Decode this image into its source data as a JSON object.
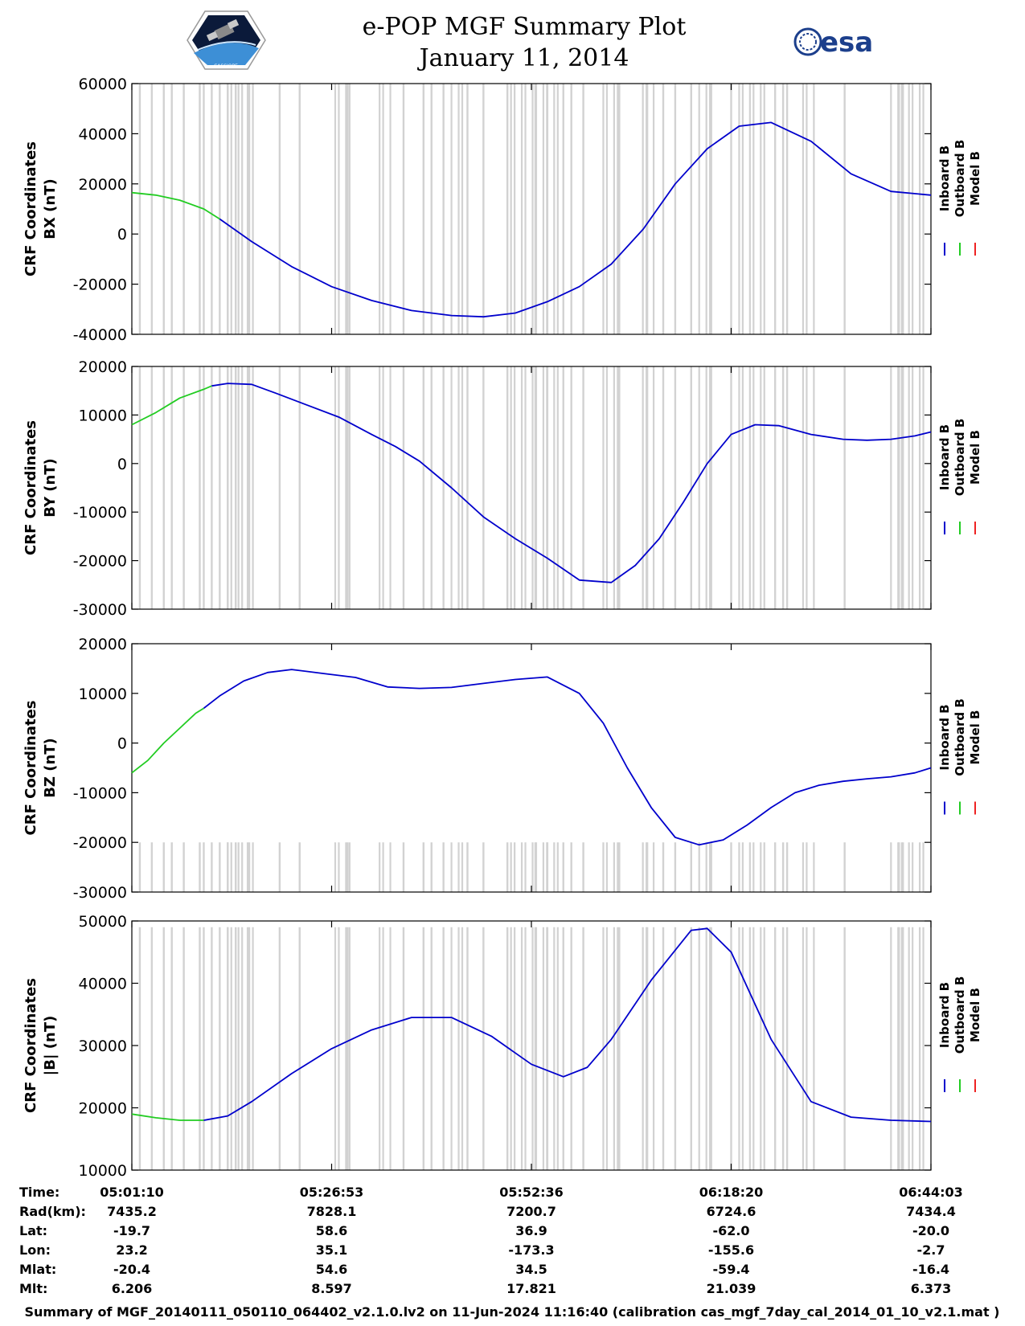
{
  "header": {
    "title": "e-POP MGF Summary Plot",
    "date": "January 11, 2014",
    "logo_left": "cassiope-mission-logo",
    "logo_right": "esa"
  },
  "colors": {
    "inboard": "#0000cc",
    "outboard": "#22cc22",
    "model": "#ee2222",
    "bands": "#d2d2d2",
    "axes": "#000000"
  },
  "legend": [
    "Inboard B",
    "Outboard B",
    "Model B"
  ],
  "chart_data": [
    {
      "type": "line",
      "ylabel_line1": "CRF Coordinates",
      "ylabel_line2": "BX (nT)",
      "ylim": [
        -40000,
        60000
      ],
      "yticks": [
        -40000,
        -20000,
        0,
        20000,
        40000,
        60000
      ],
      "ytick_labels": [
        "-40000",
        "-20000",
        "0",
        "20000",
        "40000",
        "60000"
      ],
      "xlim": [
        0,
        100
      ],
      "band_top": 60000,
      "series": [
        {
          "name": "Outboard B",
          "x": [
            0,
            3,
            6,
            9,
            11
          ],
          "y": [
            16500,
            15500,
            13500,
            10000,
            6000
          ]
        },
        {
          "name": "Inboard B",
          "x": [
            11,
            15,
            20,
            25,
            30,
            35,
            40,
            44,
            48,
            52,
            56,
            60,
            64,
            68,
            72,
            76,
            80,
            85,
            90,
            95,
            100
          ],
          "y": [
            6000,
            -3000,
            -13000,
            -21000,
            -26500,
            -30500,
            -32500,
            -33000,
            -31500,
            -27000,
            -21000,
            -12000,
            2000,
            20000,
            34000,
            43000,
            44500,
            37000,
            24000,
            17000,
            15500
          ]
        }
      ]
    },
    {
      "type": "line",
      "ylabel_line1": "CRF Coordinates",
      "ylabel_line2": "BY (nT)",
      "ylim": [
        -30000,
        20000
      ],
      "yticks": [
        -30000,
        -20000,
        -10000,
        0,
        10000,
        20000
      ],
      "ytick_labels": [
        "-30000",
        "-20000",
        "-10000",
        "0",
        "10000",
        "20000"
      ],
      "xlim": [
        0,
        100
      ],
      "band_top": 20000,
      "series": [
        {
          "name": "Outboard B",
          "x": [
            0,
            3,
            6,
            9,
            10
          ],
          "y": [
            8000,
            10500,
            13500,
            15300,
            16000
          ]
        },
        {
          "name": "Inboard B",
          "x": [
            10,
            12,
            15,
            18,
            22,
            26,
            30,
            33,
            36,
            40,
            44,
            48,
            52,
            56,
            60,
            63,
            66,
            69,
            72,
            75,
            78,
            81,
            85,
            89,
            92,
            95,
            98,
            100
          ],
          "y": [
            16000,
            16500,
            16300,
            14500,
            12000,
            9500,
            6000,
            3500,
            500,
            -5000,
            -11000,
            -15500,
            -19500,
            -24000,
            -24500,
            -21000,
            -15500,
            -8000,
            0,
            6000,
            8000,
            7800,
            6000,
            5000,
            4800,
            5000,
            5700,
            6500
          ]
        }
      ]
    },
    {
      "type": "line",
      "ylabel_line1": "CRF Coordinates",
      "ylabel_line2": "BZ (nT)",
      "ylim": [
        -30000,
        20000
      ],
      "yticks": [
        -30000,
        -20000,
        -10000,
        0,
        10000,
        20000
      ],
      "ytick_labels": [
        "-30000",
        "-20000",
        "-10000",
        "0",
        "10000",
        "20000"
      ],
      "xlim": [
        0,
        100
      ],
      "band_top": -20000,
      "series": [
        {
          "name": "Outboard B",
          "x": [
            0,
            2,
            4,
            6,
            8,
            9
          ],
          "y": [
            -6000,
            -3500,
            0,
            3000,
            6000,
            7000
          ]
        },
        {
          "name": "Inboard B",
          "x": [
            9,
            11,
            14,
            17,
            20,
            24,
            28,
            32,
            36,
            40,
            44,
            48,
            52,
            56,
            59,
            62,
            65,
            68,
            71,
            74,
            77,
            80,
            83,
            86,
            89,
            92,
            95,
            98,
            100
          ],
          "y": [
            7000,
            9500,
            12500,
            14200,
            14800,
            14000,
            13200,
            11300,
            11000,
            11200,
            12000,
            12800,
            13300,
            10000,
            4000,
            -5000,
            -13000,
            -19000,
            -20500,
            -19500,
            -16500,
            -13000,
            -10000,
            -8500,
            -7700,
            -7200,
            -6800,
            -6000,
            -5000
          ]
        }
      ]
    },
    {
      "type": "line",
      "ylabel_line1": "CRF Coordinates",
      "ylabel_line2": "|B| (nT)",
      "ylim": [
        10000,
        50000
      ],
      "yticks": [
        10000,
        20000,
        30000,
        40000,
        50000
      ],
      "ytick_labels": [
        "10000",
        "20000",
        "30000",
        "40000",
        "50000"
      ],
      "xlim": [
        0,
        100
      ],
      "band_top": 49000,
      "series": [
        {
          "name": "Outboard B",
          "x": [
            0,
            3,
            6,
            9
          ],
          "y": [
            19000,
            18400,
            18000,
            18000
          ]
        },
        {
          "name": "Inboard B",
          "x": [
            9,
            12,
            15,
            20,
            25,
            30,
            35,
            40,
            45,
            50,
            54,
            57,
            60,
            65,
            70,
            72,
            75,
            80,
            85,
            90,
            95,
            100
          ],
          "y": [
            18000,
            18700,
            21000,
            25500,
            29500,
            32500,
            34500,
            34500,
            31500,
            27000,
            25000,
            26500,
            31000,
            40500,
            48500,
            48800,
            45000,
            31000,
            21000,
            18500,
            18000,
            17800
          ]
        }
      ]
    }
  ],
  "data_gaps": {
    "thin": [
      1,
      2.5,
      4,
      5,
      6.5,
      8.5,
      9,
      10,
      11,
      12,
      13,
      14.5,
      18.5,
      21,
      27,
      34,
      36.5,
      37.5,
      39,
      42,
      44,
      47,
      50.5,
      52,
      54,
      55,
      56.5,
      61,
      64.5,
      66.5,
      68,
      70,
      72.5,
      75,
      80.5,
      81.5,
      82,
      89.2,
      96,
      96.5
    ],
    "dense": [
      [
        12,
        15.5
      ],
      [
        25,
        28
      ],
      [
        31,
        32.5
      ],
      [
        40,
        41.5
      ],
      [
        47,
        54
      ],
      [
        59,
        61
      ],
      [
        63.5,
        65.5
      ],
      [
        71,
        73
      ],
      [
        76,
        80
      ],
      [
        84,
        85.5
      ],
      [
        95,
        99.5
      ]
    ]
  },
  "xticks": [
    0,
    25,
    50,
    75,
    100
  ],
  "info_table": {
    "labels": [
      "Time:",
      "Rad(km):",
      "Lat:",
      "Lon:",
      "Mlat:",
      "Mlt:"
    ],
    "columns": [
      [
        "05:01:10",
        "7435.2",
        "-19.7",
        "23.2",
        "-20.4",
        "6.206"
      ],
      [
        "05:26:53",
        "7828.1",
        "58.6",
        "35.1",
        "54.6",
        "8.597"
      ],
      [
        "05:52:36",
        "7200.7",
        "36.9",
        "-173.3",
        "34.5",
        "17.821"
      ],
      [
        "06:18:20",
        "6724.6",
        "-62.0",
        "-155.6",
        "-59.4",
        "21.039"
      ],
      [
        "06:44:03",
        "7434.4",
        "-20.0",
        "-2.7",
        "-16.4",
        "6.373"
      ]
    ]
  },
  "footer": "Summary of MGF_20140111_050110_064402_v2.1.0.lv2 on 11-Jun-2024 11:16:40 (calibration cas_mgf_7day_cal_2014_01_10_v2.1.mat )"
}
